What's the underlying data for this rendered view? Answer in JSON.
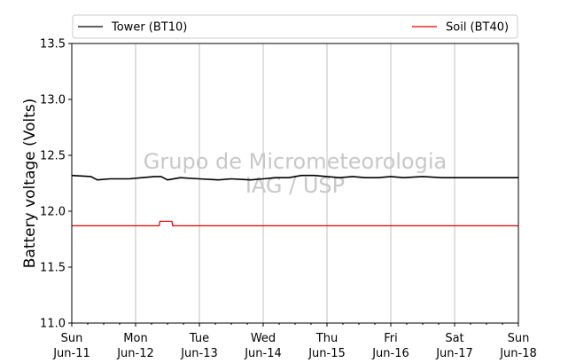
{
  "chart_data": {
    "type": "line",
    "ylabel": "Battery voltage (Volts)",
    "ylim": [
      11.0,
      13.5
    ],
    "yticks": [
      11.0,
      11.5,
      12.0,
      12.5,
      13.0,
      13.5
    ],
    "xlim": [
      0,
      7
    ],
    "xticks": [
      {
        "day": "Sun",
        "date": "Jun-11"
      },
      {
        "day": "Mon",
        "date": "Jun-12"
      },
      {
        "day": "Tue",
        "date": "Jun-13"
      },
      {
        "day": "Wed",
        "date": "Jun-14"
      },
      {
        "day": "Thu",
        "date": "Jun-15"
      },
      {
        "day": "Fri",
        "date": "Jun-16"
      },
      {
        "day": "Sat",
        "date": "Jun-17"
      },
      {
        "day": "Sun",
        "date": "Jun-18"
      }
    ],
    "grid": "vertical",
    "legend_placement": "top",
    "watermark": [
      "Grupo de Micrometeorologia",
      "IAG / USP"
    ],
    "series": [
      {
        "name": "Tower (BT10)",
        "color": "#000000",
        "x": [
          0,
          0.3,
          0.4,
          0.6,
          0.9,
          1.1,
          1.3,
          1.4,
          1.5,
          1.7,
          2.0,
          2.3,
          2.5,
          2.8,
          3.0,
          3.2,
          3.4,
          3.6,
          3.8,
          4.0,
          4.2,
          4.4,
          4.6,
          4.8,
          5.0,
          5.2,
          5.5,
          5.8,
          6.0,
          7.0
        ],
        "y": [
          12.32,
          12.31,
          12.28,
          12.29,
          12.29,
          12.3,
          12.31,
          12.31,
          12.28,
          12.3,
          12.29,
          12.28,
          12.29,
          12.28,
          12.29,
          12.3,
          12.3,
          12.32,
          12.32,
          12.31,
          12.3,
          12.31,
          12.3,
          12.3,
          12.31,
          12.3,
          12.31,
          12.3,
          12.3,
          12.3
        ]
      },
      {
        "name": "Soil (BT40)",
        "color": "#e00000",
        "x": [
          0,
          1.37,
          1.38,
          1.57,
          1.58,
          7.0
        ],
        "y": [
          11.87,
          11.87,
          11.91,
          11.91,
          11.87,
          11.87
        ]
      }
    ]
  }
}
